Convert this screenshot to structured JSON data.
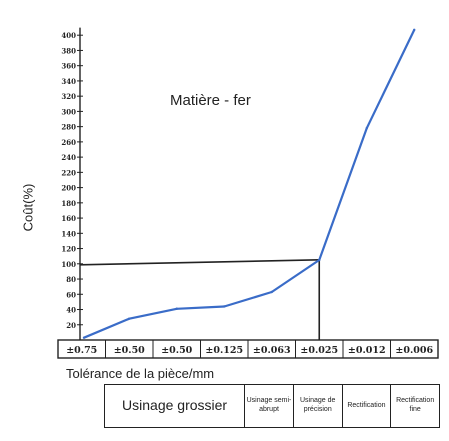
{
  "chart_data": {
    "type": "line",
    "title": "",
    "annotation": "Matière - fer",
    "ylabel": "Coût(%)",
    "xlabel": "Tolérance de la pièce/mm",
    "ylim": [
      0,
      410
    ],
    "y_ticks": [
      20,
      40,
      60,
      80,
      100,
      120,
      140,
      160,
      180,
      200,
      220,
      240,
      260,
      280,
      300,
      320,
      340,
      360,
      380,
      400
    ],
    "categories": [
      "±0.75",
      "±0.50",
      "±0.50",
      "±0.125",
      "±0.063",
      "±0.025",
      "±0.012",
      "±0.006"
    ],
    "series": [
      {
        "values": [
          3,
          28,
          41,
          44,
          63,
          105,
          278,
          407
        ]
      }
    ],
    "reference": {
      "category": "±0.025",
      "value": 100
    },
    "line_color": "#3a6cc8"
  },
  "process_table": {
    "cells": [
      "Usinage grossier",
      "Usinage semi-abrupt",
      "Usinage de précision",
      "Rectification",
      "Rectification fine"
    ]
  }
}
